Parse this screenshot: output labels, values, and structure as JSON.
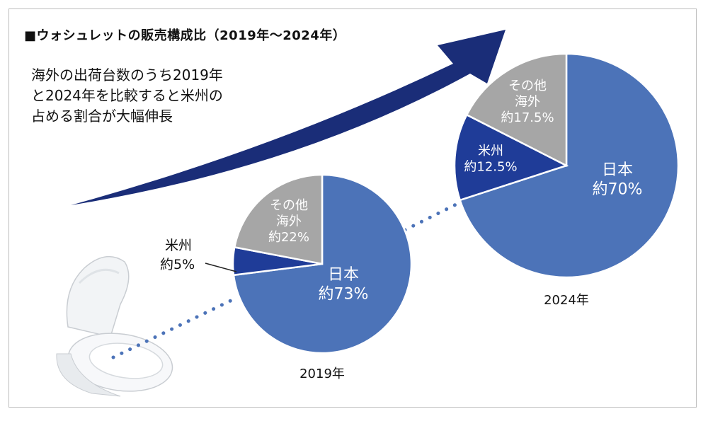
{
  "title": "■ウォシュレットの販売構成比（2019年～2024年）",
  "description": [
    "海外の出荷台数のうち2019年",
    "と2024年を比較すると米州の",
    "占める割合が大幅伸長"
  ],
  "colors": {
    "japan": "#4c73b8",
    "americas": "#1f3c98",
    "other": "#a6a6a6",
    "arrow": "#1a2d78",
    "dots": "#4c73b8"
  },
  "illustration": "toilet-seat-icon",
  "chart_data": [
    {
      "type": "pie",
      "year_label": "2019年",
      "slices": [
        {
          "key": "japan",
          "name": "日本",
          "value": 73,
          "label": [
            "日本",
            "約73%"
          ]
        },
        {
          "key": "americas",
          "name": "米州",
          "value": 5,
          "label": [
            "米州",
            "約5%"
          ]
        },
        {
          "key": "other",
          "name": "その他海外",
          "value": 22,
          "label": [
            "その他",
            "海外",
            "約22%"
          ]
        }
      ]
    },
    {
      "type": "pie",
      "year_label": "2024年",
      "slices": [
        {
          "key": "japan",
          "name": "日本",
          "value": 70,
          "label": [
            "日本",
            "約70%"
          ]
        },
        {
          "key": "americas",
          "name": "米州",
          "value": 12.5,
          "label": [
            "米州",
            "約12.5%"
          ]
        },
        {
          "key": "other",
          "name": "その他海外",
          "value": 17.5,
          "label": [
            "その他",
            "海外",
            "約17.5%"
          ]
        }
      ]
    }
  ]
}
